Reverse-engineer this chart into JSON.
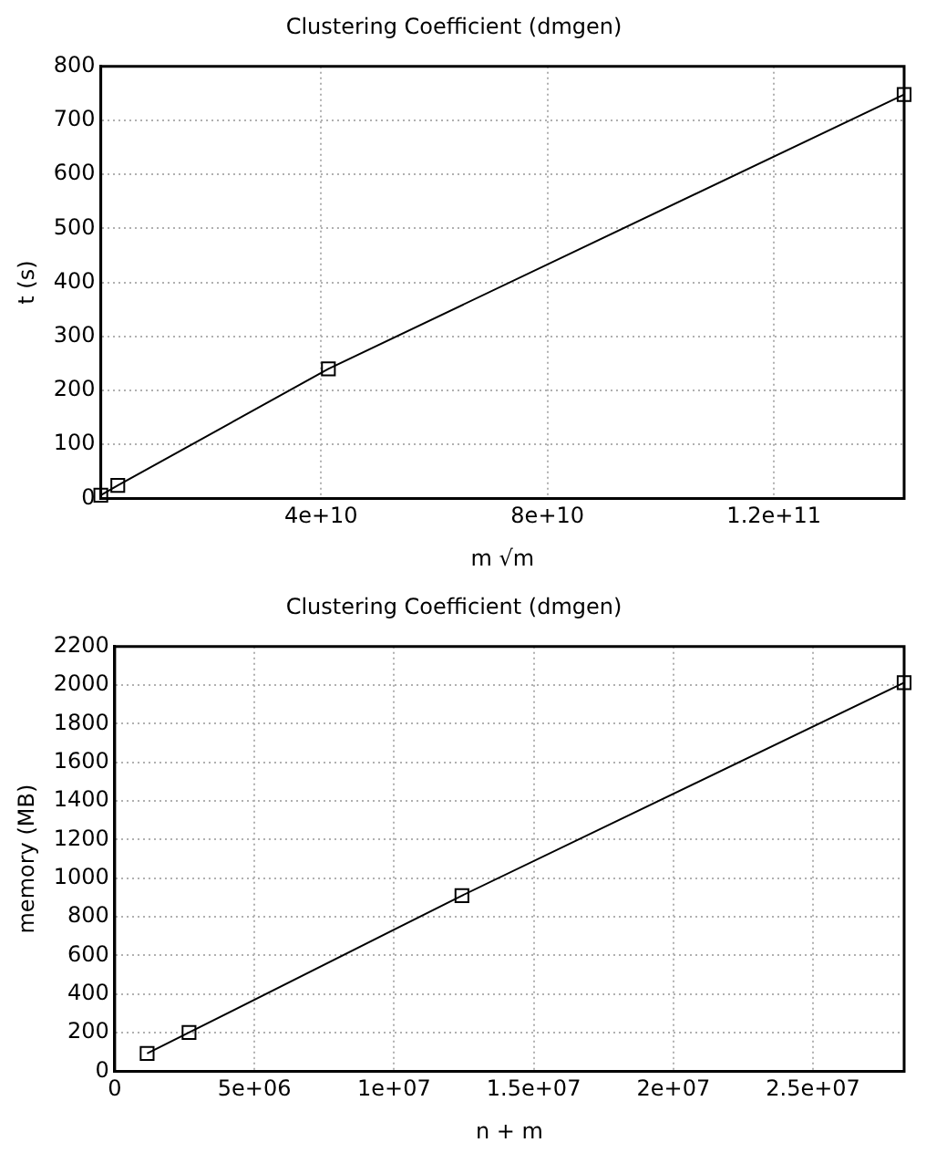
{
  "chart_data": [
    {
      "type": "line",
      "title": "Clustering Coefficient (dmgen)",
      "xlabel": "m √m",
      "ylabel": "t (s)",
      "color": "#000000",
      "marker": "square",
      "line_style": "solid",
      "grid": true,
      "x": [
        1100000000.0,
        4100000000.0,
        41300000000.0,
        143000000000.0
      ],
      "values": [
        6,
        24,
        240,
        748
      ],
      "xlim": [
        1100000000.0,
        143000000000.0
      ],
      "xticks": [
        {
          "value": 40000000000.0,
          "label": "4e+10"
        },
        {
          "value": 80000000000.0,
          "label": "8e+10"
        },
        {
          "value": 120000000000.0,
          "label": "1.2e+11"
        }
      ],
      "ylim": [
        0,
        800
      ],
      "yticks": [
        0,
        100,
        200,
        300,
        400,
        500,
        600,
        700,
        800
      ]
    },
    {
      "type": "line",
      "title": "Clustering Coefficient (dmgen)",
      "xlabel": "n + m",
      "ylabel": "memory (MB)",
      "color": "#000000",
      "marker": "square",
      "line_style": "solid",
      "grid": true,
      "x": [
        1160000.0,
        2660000.0,
        12430000.0,
        28260000.0
      ],
      "values": [
        92,
        201,
        910,
        2013
      ],
      "xlim": [
        0,
        28260000.0
      ],
      "xticks": [
        0,
        {
          "value": 5000000.0,
          "label": "5e+06"
        },
        {
          "value": 10000000.0,
          "label": "1e+07"
        },
        {
          "value": 15000000.0,
          "label": "1.5e+07"
        },
        {
          "value": 20000000.0,
          "label": "2e+07"
        },
        {
          "value": 25000000.0,
          "label": "2.5e+07"
        }
      ],
      "ylim": [
        0,
        2200
      ],
      "yticks": [
        0,
        200,
        400,
        600,
        800,
        1000,
        1200,
        1400,
        1600,
        1800,
        2000,
        2200
      ]
    }
  ]
}
